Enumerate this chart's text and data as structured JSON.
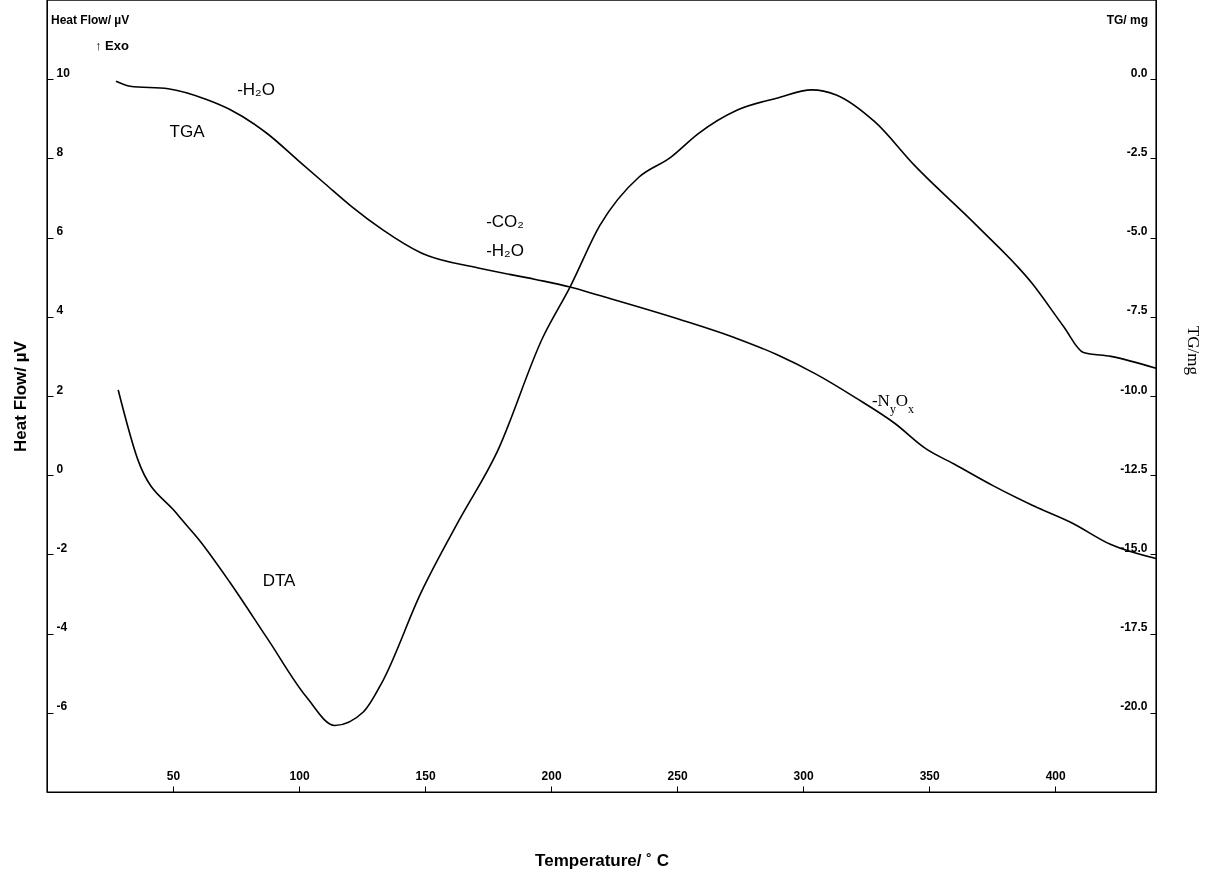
{
  "chart_data": {
    "type": "line",
    "xlabel": "Temperature/ ˚ C",
    "ylabel": "Heat Flow/ µV",
    "y2label": "TG/mg",
    "xlim": [
      0,
      440
    ],
    "xticks": [
      50,
      100,
      150,
      200,
      250,
      300,
      350,
      400
    ],
    "ylim": [
      -8,
      12
    ],
    "yticks": [
      10,
      8,
      6,
      4,
      2,
      0,
      -2,
      -4,
      -6
    ],
    "y2lim": [
      -22.5,
      2.5
    ],
    "y2ticks": [
      {
        "value": 0,
        "label": "0.0"
      },
      {
        "value": -2.5,
        "label": "-2.5"
      },
      {
        "value": -5,
        "label": "-5.0"
      },
      {
        "value": -7.5,
        "label": "-7.5"
      },
      {
        "value": -10,
        "label": "-10.0"
      },
      {
        "value": -12.5,
        "label": "-12.5"
      },
      {
        "value": -15,
        "label": "-15.0"
      },
      {
        "value": -17.5,
        "label": "-17.5"
      },
      {
        "value": -20,
        "label": "-20.0"
      }
    ],
    "grid": false,
    "line_style": "solid",
    "series": [
      {
        "color": "#000000",
        "x": [
          28.3,
          36.0,
          51.2,
          60.3,
          72.4,
          87.6,
          102.8,
          114.2,
          125.5,
          133.1,
          148.3,
          163.4,
          178.6,
          196.8,
          207.5,
          219.3,
          234.9,
          247.3,
          258.3,
          273.9,
          289.5,
          303.5,
          312.9,
          328.5,
          344.1,
          369.1,
          390.9,
          403.4,
          411.2,
          422.1,
          440
        ],
        "values": [
          2.14,
          0.4,
          -0.95,
          -1.63,
          -2.69,
          -4.14,
          -5.59,
          -6.32,
          -5.98,
          -5.21,
          -2.98,
          -1.15,
          0.59,
          3.49,
          4.75,
          6.3,
          7.53,
          8.02,
          8.62,
          9.22,
          9.52,
          9.73,
          9.61,
          8.92,
          7.83,
          6.29,
          4.84,
          3.75,
          3.1,
          3.0,
          2.7
        ]
      },
      {
        "color": "#000000",
        "axis": "y2",
        "x": [
          27.6,
          33.0,
          48.1,
          63.3,
          72.4,
          87.6,
          99.7,
          110.3,
          121.0,
          133.1,
          148.3,
          171.1,
          193.8,
          207.5,
          219.3,
          250.5,
          273.9,
          289.5,
          305.1,
          320.7,
          336.3,
          348.8,
          359.7,
          375.3,
          390.9,
          406.5,
          422.1,
          440
        ],
        "values": [
          -0.07,
          -0.22,
          -0.3,
          -0.64,
          -0.95,
          -1.73,
          -2.57,
          -3.3,
          -4.03,
          -4.75,
          -5.48,
          -5.96,
          -6.32,
          -6.56,
          -6.83,
          -7.57,
          -8.19,
          -8.69,
          -9.31,
          -10.05,
          -10.86,
          -11.67,
          -12.14,
          -12.83,
          -13.45,
          -14.0,
          -14.69,
          -15.13
        ]
      }
    ],
    "annotations": [
      "Heat Flow/ µV",
      "↑ Exo",
      "TG/ mg",
      "TGA",
      "-H₂O",
      "-CO₂",
      "-H₂O",
      "DTA",
      "-N$_{y}$O$_{x}$"
    ]
  }
}
